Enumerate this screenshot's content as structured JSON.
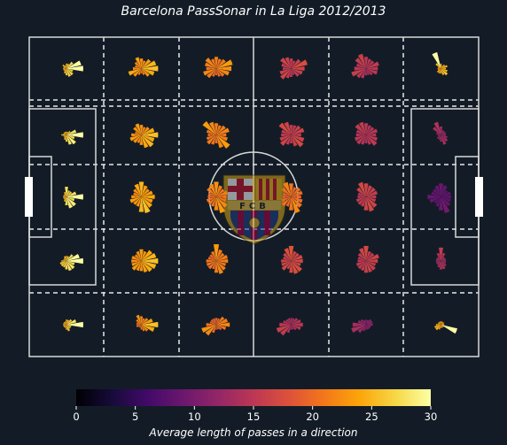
{
  "title": "Barcelona PassSonar in La Liga 2012/2013",
  "colors": {
    "background": "#131c26",
    "pitch_lines": "#d8d8d8",
    "grid_lines": "#e8e8e8",
    "colormap": "inferno"
  },
  "badge": {
    "text": "FCB"
  },
  "chart_data": {
    "type": "polar-bar-grid",
    "grid": {
      "columns": 6,
      "rows": 5,
      "zone_lines": "dashed"
    },
    "directions": 16,
    "colorbar": {
      "label": "Average length of passes in a direction",
      "min": 0,
      "max": 30,
      "ticks": [
        0,
        5,
        10,
        15,
        20,
        25,
        30
      ],
      "tick_labels": [
        "0",
        "5",
        "10",
        "15",
        "20",
        "25",
        "30"
      ]
    },
    "sonars": [
      {
        "row": 0,
        "col": 0,
        "color_value": 29,
        "lengths": [
          1,
          0.9,
          0.5,
          0.3,
          0.3,
          0.2,
          0.3,
          0.2,
          0.2,
          0.2,
          0.2,
          0.3,
          0.4,
          0.5,
          0.5,
          0.4
        ]
      },
      {
        "row": 0,
        "col": 1,
        "color_value": 24,
        "lengths": [
          1,
          0.9,
          0.7,
          0.5,
          0.6,
          0.7,
          0.5,
          0.4,
          0.5,
          0.8,
          0.6,
          0.4,
          0.3,
          0.4,
          0.6,
          0.8
        ]
      },
      {
        "row": 0,
        "col": 2,
        "color_value": 22,
        "lengths": [
          0.9,
          1,
          0.7,
          0.6,
          0.7,
          0.6,
          0.8,
          0.7,
          0.6,
          0.8,
          0.7,
          0.5,
          0.4,
          0.5,
          0.6,
          0.8
        ]
      },
      {
        "row": 0,
        "col": 3,
        "color_value": 17,
        "lengths": [
          0.8,
          1,
          0.7,
          0.5,
          0.6,
          0.7,
          0.8,
          0.6,
          0.5,
          0.7,
          0.8,
          0.6,
          0.5,
          0.4,
          0.6,
          0.7
        ]
      },
      {
        "row": 0,
        "col": 4,
        "color_value": 16,
        "lengths": [
          0.7,
          0.8,
          0.6,
          0.6,
          0.7,
          0.9,
          0.8,
          0.6,
          0.7,
          0.9,
          0.7,
          0.6,
          0.4,
          0.4,
          0.5,
          0.7
        ]
      },
      {
        "row": 0,
        "col": 5,
        "color_value": 28,
        "lengths": [
          0.3,
          0.4,
          0.3,
          0.2,
          0.3,
          1,
          0.4,
          0.2,
          0.2,
          0.2,
          0.3,
          0.3,
          0.3,
          0.4,
          0.5,
          0.4
        ]
      },
      {
        "row": 1,
        "col": 0,
        "color_value": 29,
        "lengths": [
          1,
          0.6,
          0.3,
          0.2,
          0.2,
          0.2,
          0.2,
          0.2,
          0.3,
          0.2,
          0.2,
          0.3,
          0.4,
          0.6,
          0.7,
          0.5
        ]
      },
      {
        "row": 1,
        "col": 1,
        "color_value": 24,
        "lengths": [
          1,
          0.8,
          0.6,
          0.5,
          0.6,
          0.7,
          0.6,
          0.4,
          0.6,
          0.7,
          0.6,
          0.5,
          0.6,
          0.8,
          0.9,
          0.8
        ]
      },
      {
        "row": 1,
        "col": 2,
        "color_value": 22,
        "lengths": [
          0.6,
          0.8,
          0.7,
          0.6,
          0.7,
          0.8,
          1,
          0.6,
          0.5,
          0.6,
          0.7,
          0.6,
          0.5,
          0.8,
          1,
          0.7
        ]
      },
      {
        "row": 1,
        "col": 3,
        "color_value": 17,
        "lengths": [
          0.6,
          0.8,
          0.7,
          0.6,
          0.6,
          0.8,
          0.9,
          0.6,
          0.6,
          0.7,
          0.8,
          0.6,
          0.5,
          0.7,
          0.9,
          0.8
        ]
      },
      {
        "row": 1,
        "col": 4,
        "color_value": 16,
        "lengths": [
          0.6,
          0.7,
          0.6,
          0.6,
          0.7,
          0.8,
          0.8,
          0.6,
          0.6,
          0.7,
          0.7,
          0.6,
          0.5,
          0.6,
          0.8,
          0.7
        ]
      },
      {
        "row": 1,
        "col": 5,
        "color_value": 15,
        "lengths": [
          0.3,
          0.3,
          0.3,
          0.3,
          0.5,
          0.8,
          0.6,
          0.3,
          0.2,
          0.2,
          0.3,
          0.3,
          0.4,
          0.6,
          0.5,
          0.4
        ]
      },
      {
        "row": 2,
        "col": 0,
        "color_value": 29,
        "lengths": [
          1,
          0.6,
          0.4,
          0.4,
          0.6,
          0.3,
          0.2,
          0.2,
          0.2,
          0.2,
          0.2,
          0.3,
          0.5,
          0.7,
          0.7,
          0.5
        ]
      },
      {
        "row": 2,
        "col": 1,
        "color_value": 24,
        "lengths": [
          0.8,
          0.7,
          0.6,
          0.7,
          0.9,
          0.8,
          0.6,
          0.5,
          0.6,
          0.7,
          0.6,
          0.6,
          0.9,
          1,
          0.8,
          0.7
        ]
      },
      {
        "row": 2,
        "col": 2,
        "color_value": 22,
        "lengths": [
          0.6,
          0.7,
          0.6,
          0.7,
          0.9,
          0.8,
          0.7,
          0.5,
          0.5,
          0.6,
          0.6,
          0.6,
          0.8,
          1,
          0.8,
          0.6
        ]
      },
      {
        "row": 2,
        "col": 3,
        "color_value": 21,
        "lengths": [
          0.6,
          0.7,
          0.7,
          0.6,
          0.8,
          0.9,
          0.7,
          0.5,
          0.5,
          0.6,
          0.7,
          0.6,
          0.8,
          1,
          0.8,
          0.7
        ]
      },
      {
        "row": 2,
        "col": 4,
        "color_value": 17,
        "lengths": [
          0.6,
          0.7,
          0.7,
          0.7,
          0.8,
          0.9,
          0.7,
          0.5,
          0.5,
          0.6,
          0.6,
          0.6,
          0.8,
          0.9,
          0.8,
          0.6
        ]
      },
      {
        "row": 2,
        "col": 5,
        "color_value": 10,
        "lengths": [
          0.6,
          0.6,
          0.5,
          0.7,
          0.8,
          0.7,
          0.6,
          0.6,
          0.8,
          0.7,
          0.5,
          0.6,
          0.8,
          1,
          0.7,
          0.6
        ]
      },
      {
        "row": 3,
        "col": 0,
        "color_value": 29,
        "lengths": [
          1,
          0.8,
          0.5,
          0.3,
          0.3,
          0.3,
          0.2,
          0.2,
          0.3,
          0.4,
          0.4,
          0.4,
          0.5,
          0.6,
          0.6,
          0.5
        ]
      },
      {
        "row": 3,
        "col": 1,
        "color_value": 24,
        "lengths": [
          1,
          0.9,
          0.8,
          0.6,
          0.7,
          0.6,
          0.5,
          0.6,
          0.6,
          0.6,
          0.7,
          0.6,
          0.6,
          0.7,
          0.8,
          0.9
        ]
      },
      {
        "row": 3,
        "col": 2,
        "color_value": 22,
        "lengths": [
          0.7,
          0.7,
          0.6,
          0.7,
          1,
          0.6,
          0.5,
          0.5,
          0.6,
          0.6,
          0.6,
          0.5,
          0.7,
          0.8,
          0.7,
          0.6
        ]
      },
      {
        "row": 3,
        "col": 3,
        "color_value": 18,
        "lengths": [
          0.7,
          0.7,
          0.6,
          0.6,
          0.9,
          0.8,
          0.6,
          0.5,
          0.6,
          0.6,
          0.7,
          0.5,
          0.7,
          0.8,
          0.8,
          0.6
        ]
      },
      {
        "row": 3,
        "col": 4,
        "color_value": 17,
        "lengths": [
          0.7,
          0.8,
          0.6,
          0.6,
          0.9,
          0.8,
          0.6,
          0.5,
          0.5,
          0.6,
          0.6,
          0.6,
          0.7,
          0.7,
          0.7,
          0.6
        ]
      },
      {
        "row": 3,
        "col": 5,
        "color_value": 16,
        "lengths": [
          0.3,
          0.3,
          0.3,
          0.5,
          0.8,
          0.5,
          0.3,
          0.3,
          0.3,
          0.3,
          0.3,
          0.4,
          0.5,
          0.5,
          0.4,
          0.3
        ]
      },
      {
        "row": 4,
        "col": 0,
        "color_value": 29,
        "lengths": [
          1,
          0.6,
          0.4,
          0.3,
          0.3,
          0.2,
          0.2,
          0.2,
          0.2,
          0.2,
          0.2,
          0.2,
          0.3,
          0.4,
          0.3,
          0.3
        ]
      },
      {
        "row": 4,
        "col": 1,
        "color_value": 24,
        "lengths": [
          1,
          0.7,
          0.5,
          0.4,
          0.5,
          0.6,
          0.4,
          0.3,
          0.3,
          0.3,
          0.2,
          0.2,
          0.3,
          0.4,
          0.5,
          0.8
        ]
      },
      {
        "row": 4,
        "col": 2,
        "color_value": 22,
        "lengths": [
          0.8,
          0.7,
          0.6,
          0.4,
          0.4,
          0.4,
          0.4,
          0.4,
          0.6,
          0.9,
          0.8,
          0.5,
          0.3,
          0.3,
          0.4,
          0.6
        ]
      },
      {
        "row": 4,
        "col": 3,
        "color_value": 16,
        "lengths": [
          0.7,
          0.6,
          0.5,
          0.4,
          0.4,
          0.4,
          0.4,
          0.5,
          0.7,
          0.9,
          0.8,
          0.5,
          0.3,
          0.3,
          0.4,
          0.6
        ]
      },
      {
        "row": 4,
        "col": 4,
        "color_value": 14,
        "lengths": [
          0.4,
          0.4,
          0.4,
          0.3,
          0.3,
          0.3,
          0.4,
          0.5,
          0.8,
          0.9,
          0.6,
          0.4,
          0.3,
          0.3,
          0.3,
          0.3
        ]
      },
      {
        "row": 4,
        "col": 5,
        "color_value": 28,
        "lengths": [
          0.2,
          0.2,
          0.2,
          0.2,
          0.2,
          0.2,
          0.2,
          0.2,
          0.3,
          0.4,
          0.4,
          0.3,
          0.2,
          0.2,
          0.2,
          1
        ]
      }
    ]
  }
}
